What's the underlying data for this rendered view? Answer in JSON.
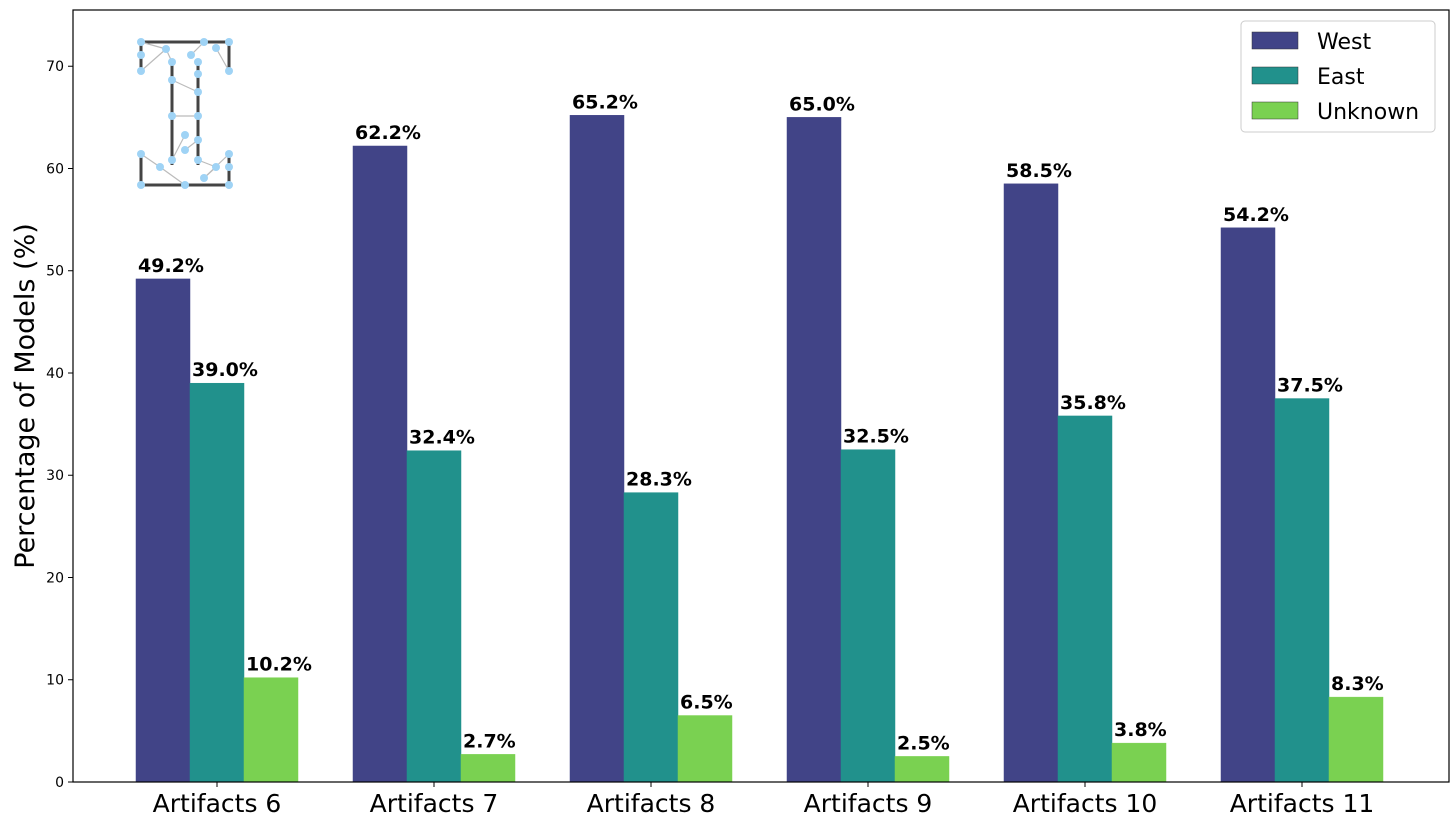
{
  "chart_data": {
    "type": "bar",
    "categories": [
      "Artifacts 6",
      "Artifacts 7",
      "Artifacts 8",
      "Artifacts 9",
      "Artifacts 10",
      "Artifacts 11"
    ],
    "series": [
      {
        "name": "West",
        "color": "#414487",
        "values": [
          49.2,
          62.2,
          65.2,
          65.0,
          58.5,
          54.2
        ],
        "labels": [
          "49.2%",
          "62.2%",
          "65.2%",
          "65.0%",
          "58.5%",
          "54.2%"
        ]
      },
      {
        "name": "East",
        "color": "#21918c",
        "values": [
          39.0,
          32.4,
          28.3,
          32.5,
          35.8,
          37.5
        ],
        "labels": [
          "39.0%",
          "32.4%",
          "28.3%",
          "32.5%",
          "35.8%",
          "37.5%"
        ]
      },
      {
        "name": "Unknown",
        "color": "#7ad151",
        "values": [
          10.2,
          2.7,
          6.5,
          2.5,
          3.8,
          8.3
        ],
        "labels": [
          "10.2%",
          "2.7%",
          "6.5%",
          "2.5%",
          "3.8%",
          "8.3%"
        ]
      }
    ],
    "title": "",
    "xlabel": "",
    "ylabel": "Percentage of Models (%)",
    "ylim": [
      0,
      75.5
    ],
    "yticks": [
      "0",
      "10",
      "20",
      "30",
      "40",
      "50",
      "60",
      "70"
    ],
    "grid": false,
    "legend_position": "top-right",
    "logo": "network-letter-i-logo"
  }
}
